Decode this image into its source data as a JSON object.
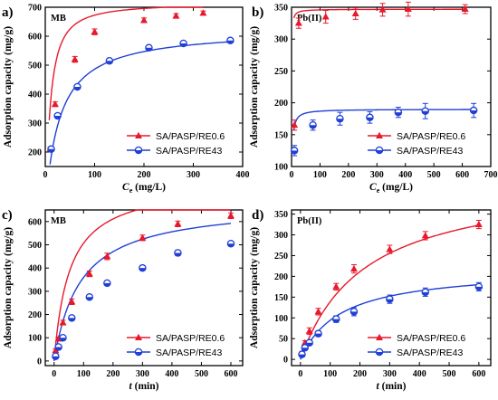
{
  "colors": {
    "red": "#e8192c",
    "blue": "#1f3fd6",
    "axis": "#000000"
  },
  "chart_data": [
    {
      "panel": "a)",
      "tag": "MB",
      "type": "scatter",
      "xlabel_main": "C",
      "xlabel_sub": "e",
      "xlabel_unit": " (mg/L)",
      "ylabel": "Adsorption capacity (mg/g)",
      "xlim": [
        0,
        400
      ],
      "ylim": [
        150,
        700
      ],
      "xticks": [
        0,
        100,
        200,
        300,
        400
      ],
      "yticks": [
        200,
        300,
        400,
        500,
        600,
        700
      ],
      "xtick_labels": [
        "0",
        "100",
        "200",
        "300",
        "400"
      ],
      "ytick_labels": [
        "200",
        "300",
        "400",
        "500",
        "600",
        "700"
      ],
      "legend": [
        "SA/PASP/RE0.6",
        "SA/PASP/RE43"
      ],
      "legend_position": "bottom-right",
      "series": [
        {
          "name": "SA/PASP/RE0.6",
          "marker": "triangle",
          "color": "red",
          "x": [
            10,
            20,
            60,
            100,
            200,
            265,
            320
          ],
          "y": [
            210,
            365,
            520,
            615,
            655,
            670,
            680
          ],
          "err": [
            6,
            8,
            10,
            10,
            8,
            8,
            7
          ]
        },
        {
          "name": "SA/PASP/RE43",
          "marker": "circle",
          "color": "blue",
          "x": [
            12,
            25,
            65,
            130,
            210,
            280,
            375
          ],
          "y": [
            210,
            325,
            425,
            515,
            560,
            575,
            585
          ],
          "err": [
            5,
            6,
            6,
            8,
            6,
            6,
            6
          ]
        }
      ],
      "fits": [
        {
          "color": "red",
          "qmax": 715,
          "K": 0.1,
          "n": 1.2
        },
        {
          "color": "blue",
          "qmax": 625,
          "K": 0.035,
          "n": 1.0
        }
      ]
    },
    {
      "panel": "b)",
      "tag": "Pb(II)",
      "type": "scatter",
      "xlabel_main": "C",
      "xlabel_sub": "e",
      "xlabel_unit": " (mg/L)",
      "ylabel": "Adsorption capacity (mg/g)",
      "xlim": [
        0,
        700
      ],
      "ylim": [
        100,
        350
      ],
      "xticks": [
        0,
        100,
        200,
        300,
        400,
        500,
        600,
        700
      ],
      "yticks": [
        100,
        150,
        200,
        250,
        300,
        350
      ],
      "xtick_labels": [
        "0",
        "100",
        "200",
        "300",
        "400",
        "500",
        "600",
        "700"
      ],
      "ytick_labels": [
        "100",
        "150",
        "200",
        "250",
        "300",
        "350"
      ],
      "legend": [
        "SA/PASP/RE0.6",
        "SA/PASP/RE43"
      ],
      "legend_position": "bottom-right",
      "series": [
        {
          "name": "SA/PASP/RE0.6",
          "marker": "triangle",
          "color": "red",
          "x": [
            10,
            25,
            120,
            225,
            320,
            410,
            610
          ],
          "y": [
            165,
            325,
            335,
            340,
            346,
            347,
            347
          ],
          "err": [
            8,
            8,
            10,
            9,
            10,
            11,
            7
          ]
        },
        {
          "name": "SA/PASP/RE43",
          "marker": "circle",
          "color": "blue",
          "x": [
            10,
            75,
            170,
            275,
            375,
            470,
            640
          ],
          "y": [
            125,
            165,
            175,
            177,
            185,
            187,
            188
          ],
          "err": [
            8,
            8,
            10,
            9,
            8,
            12,
            11
          ]
        }
      ],
      "fits": [
        {
          "color": "red",
          "qmax": 347,
          "K": 3,
          "n": 1
        },
        {
          "color": "blue",
          "qmax": 190,
          "K": 0.6,
          "n": 1
        }
      ]
    },
    {
      "panel": "c)",
      "tag": "MB",
      "type": "scatter",
      "xlabel_main": "t",
      "xlabel_sub": "",
      "xlabel_unit": " (min)",
      "ylabel": "Adsorption capacity (mg/g)",
      "xlim": [
        -30,
        640
      ],
      "ylim": [
        -20,
        650
      ],
      "xticks": [
        0,
        100,
        200,
        300,
        400,
        500,
        600
      ],
      "yticks": [
        0,
        100,
        200,
        300,
        400,
        500,
        600
      ],
      "xtick_labels": [
        "0",
        "100",
        "200",
        "300",
        "400",
        "500",
        "600"
      ],
      "ytick_labels": [
        "0",
        "100",
        "200",
        "300",
        "400",
        "500",
        "600"
      ],
      "legend": [
        "SA/PASP/RE0.6",
        "SA/PASP/RE43"
      ],
      "legend_position": "bottom-right",
      "series": [
        {
          "name": "SA/PASP/RE0.6",
          "marker": "triangle",
          "color": "red",
          "x": [
            5,
            15,
            30,
            60,
            120,
            180,
            300,
            420,
            600
          ],
          "y": [
            45,
            95,
            165,
            255,
            375,
            450,
            530,
            590,
            625
          ],
          "err": [
            8,
            8,
            10,
            12,
            12,
            14,
            12,
            12,
            12
          ]
        },
        {
          "name": "SA/PASP/RE43",
          "marker": "circle",
          "color": "blue",
          "x": [
            5,
            15,
            30,
            60,
            120,
            180,
            300,
            420,
            600
          ],
          "y": [
            20,
            60,
            100,
            185,
            275,
            335,
            400,
            465,
            505
          ],
          "err": [
            6,
            6,
            8,
            10,
            8,
            8,
            8,
            12,
            8
          ]
        }
      ],
      "fits": [
        {
          "color": "red",
          "qmax": 770,
          "k": 2.5e-05
        },
        {
          "color": "blue",
          "qmax": 680,
          "k": 1.65e-05
        }
      ]
    },
    {
      "panel": "d)",
      "tag": "Pb(II)",
      "type": "scatter",
      "xlabel_main": "t",
      "xlabel_sub": "",
      "xlabel_unit": " (min)",
      "ylabel": "Adsorption capacity (mg/g)",
      "xlim": [
        -30,
        640
      ],
      "ylim": [
        -15,
        360
      ],
      "xticks": [
        0,
        100,
        200,
        300,
        400,
        500,
        600
      ],
      "yticks": [
        0,
        50,
        100,
        150,
        200,
        250,
        300,
        350
      ],
      "xtick_labels": [
        "0",
        "100",
        "200",
        "300",
        "400",
        "500",
        "600"
      ],
      "ytick_labels": [
        "0",
        "50",
        "100",
        "150",
        "200",
        "250",
        "300",
        "350"
      ],
      "legend": [
        "SA/PASP/RE0.6",
        "SA/PASP/RE43"
      ],
      "legend_position": "bottom-right",
      "series": [
        {
          "name": "SA/PASP/RE0.6",
          "marker": "triangle",
          "color": "red",
          "x": [
            5,
            15,
            30,
            60,
            120,
            180,
            300,
            420,
            600
          ],
          "y": [
            15,
            40,
            68,
            115,
            175,
            218,
            265,
            298,
            325
          ],
          "err": [
            4,
            5,
            8,
            8,
            8,
            10,
            10,
            10,
            10
          ]
        },
        {
          "name": "SA/PASP/RE43",
          "marker": "circle",
          "color": "blue",
          "x": [
            5,
            15,
            30,
            60,
            120,
            180,
            300,
            420,
            600
          ],
          "y": [
            12,
            28,
            40,
            62,
            97,
            115,
            145,
            162,
            175
          ],
          "err": [
            4,
            4,
            6,
            6,
            8,
            10,
            10,
            10,
            10
          ]
        }
      ],
      "fits": [
        {
          "color": "red",
          "qmax": 440,
          "k": 1.05e-05
        },
        {
          "color": "blue",
          "qmax": 220,
          "k": 3.4e-05
        }
      ]
    }
  ]
}
